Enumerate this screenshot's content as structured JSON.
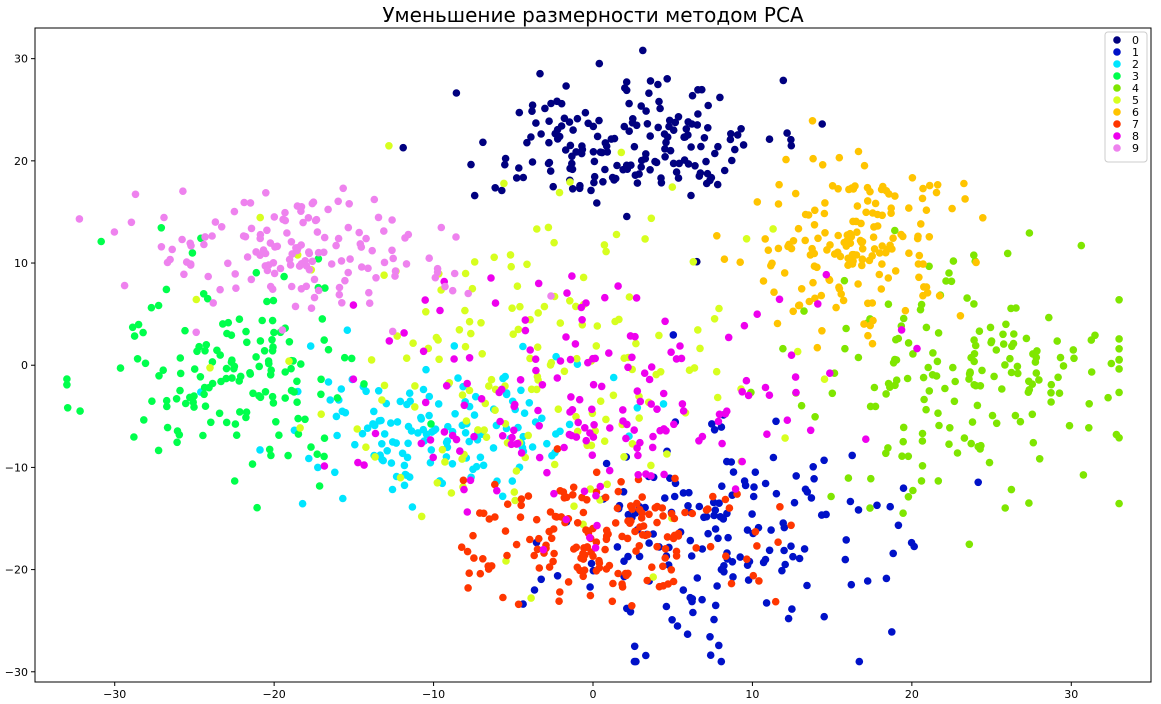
{
  "chart_data": {
    "type": "scatter",
    "title": "Уменьшение размерности методом PCA",
    "xlabel": "",
    "ylabel": "",
    "xlim": [
      -35,
      35
    ],
    "ylim": [
      -31,
      33
    ],
    "xticks": [
      -30,
      -20,
      -10,
      0,
      10,
      20,
      30
    ],
    "yticks": [
      -30,
      -20,
      -10,
      0,
      10,
      20,
      30
    ],
    "grid": false,
    "legend_position": "top-right",
    "series": [
      {
        "name": "0",
        "color": "#00007f",
        "center": [
          2,
          21.5
        ],
        "spread": [
          4.8,
          3.2
        ],
        "count": 180
      },
      {
        "name": "1",
        "color": "#0011c8",
        "center": [
          8,
          -17
        ],
        "spread": [
          5.5,
          5.5
        ],
        "count": 170
      },
      {
        "name": "2",
        "color": "#00e5ff",
        "center": [
          -10,
          -7
        ],
        "spread": [
          4.5,
          3.5
        ],
        "count": 150
      },
      {
        "name": "3",
        "color": "#00ff4c",
        "center": [
          -22,
          -1
        ],
        "spread": [
          4.5,
          5.5
        ],
        "count": 150
      },
      {
        "name": "4",
        "color": "#7fe600",
        "center": [
          23,
          -2
        ],
        "spread": [
          5,
          6
        ],
        "count": 180
      },
      {
        "name": "5",
        "color": "#d7ff1f",
        "center": [
          -4,
          0
        ],
        "spread": [
          7,
          8
        ],
        "count": 170
      },
      {
        "name": "6",
        "color": "#ffc400",
        "center": [
          17,
          12
        ],
        "spread": [
          3.5,
          4
        ],
        "count": 170
      },
      {
        "name": "7",
        "color": "#ff3600",
        "center": [
          1,
          -17
        ],
        "spread": [
          4.5,
          3
        ],
        "count": 180
      },
      {
        "name": "8",
        "color": "#ee00ee",
        "center": [
          0,
          -3
        ],
        "spread": [
          7,
          6
        ],
        "count": 170
      },
      {
        "name": "9",
        "color": "#ee82ee",
        "center": [
          -18,
          11
        ],
        "spread": [
          5,
          3
        ],
        "count": 150
      }
    ]
  }
}
